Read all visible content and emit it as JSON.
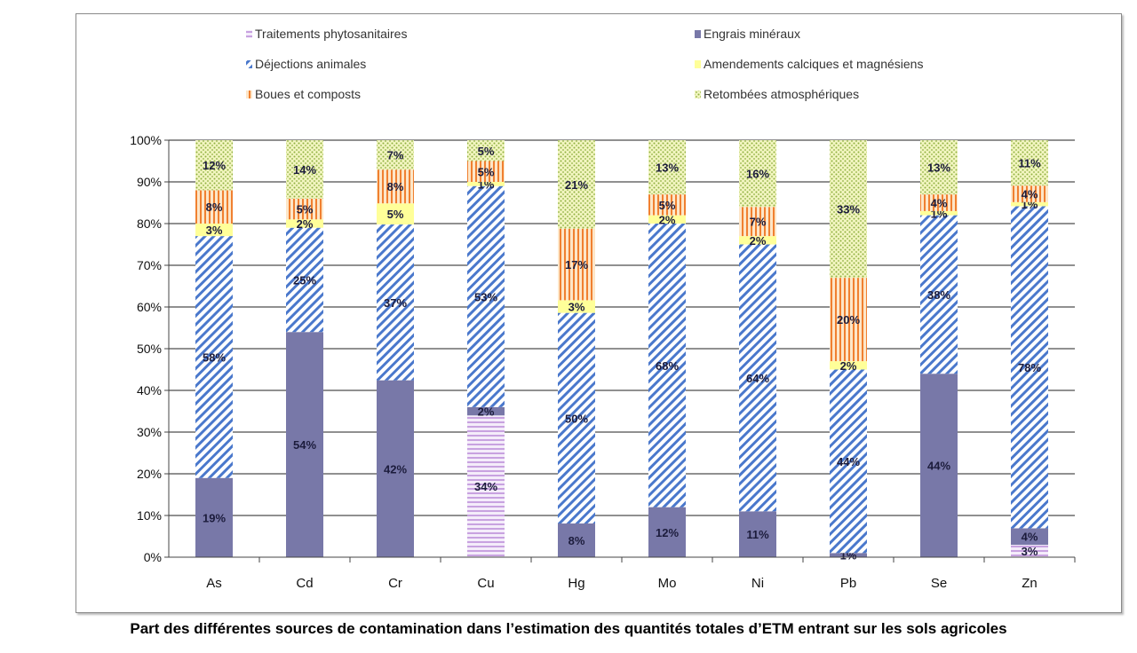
{
  "chart_data": {
    "type": "bar",
    "stacked": "percent",
    "title": "Part des différentes sources de contamination dans l’estimation des quantités totales d’ETM entrant sur les sols agricoles",
    "categories": [
      "As",
      "Cd",
      "Cr",
      "Cu",
      "Hg",
      "Mo",
      "Ni",
      "Pb",
      "Se",
      "Zn"
    ],
    "ylim": [
      0,
      100
    ],
    "yticks": [
      "0%",
      "10%",
      "20%",
      "30%",
      "40%",
      "50%",
      "60%",
      "70%",
      "80%",
      "90%",
      "100%"
    ],
    "grid": true,
    "legend_placement": "top",
    "series": [
      {
        "name": "Traitements phytosanitaires",
        "color": "#c8a2e0",
        "pattern": "horizontal-lines",
        "values": [
          0,
          0,
          0,
          34,
          0,
          0,
          0,
          0,
          0,
          3
        ]
      },
      {
        "name": "Engrais minéraux",
        "color": "#7878a8",
        "pattern": "solid",
        "values": [
          19,
          54,
          42,
          2,
          8,
          12,
          11,
          1,
          44,
          4
        ]
      },
      {
        "name": "Déjections animales",
        "color": "#4a78cc",
        "pattern": "diagonal-lines",
        "values": [
          58,
          25,
          37,
          53,
          50,
          68,
          64,
          44,
          38,
          78
        ]
      },
      {
        "name": "Amendements calciques et magnésiens",
        "color": "#ffff99",
        "pattern": "solid",
        "values": [
          3,
          2,
          5,
          1,
          3,
          2,
          2,
          2,
          1,
          1
        ]
      },
      {
        "name": "Boues et composts",
        "color": "#f08030",
        "pattern": "vertical-lines",
        "values": [
          8,
          5,
          8,
          5,
          17,
          5,
          7,
          20,
          4,
          4
        ]
      },
      {
        "name": "Retombées atmosphériques",
        "color": "#b8d070",
        "pattern": "dots",
        "values": [
          12,
          14,
          7,
          5,
          21,
          13,
          16,
          33,
          13,
          11
        ]
      }
    ]
  }
}
